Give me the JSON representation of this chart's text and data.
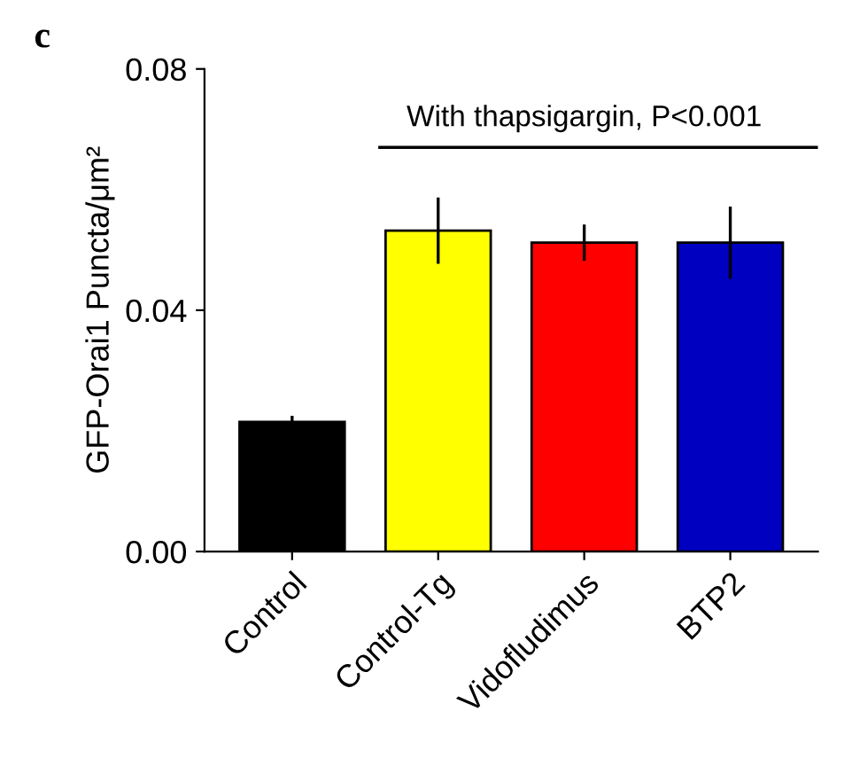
{
  "chart_data": {
    "type": "bar",
    "categories": [
      "Control",
      "Control-Tg",
      "Vidofludimus",
      "BTP2"
    ],
    "values": [
      0.0215,
      0.0532,
      0.0512,
      0.0512
    ],
    "errors": [
      0.001,
      0.0055,
      0.003,
      0.006
    ],
    "colors": [
      "#000000",
      "#ffff00",
      "#ff0000",
      "#0000c0"
    ],
    "ylabel": "GFP-Orai1 Puncta/μm²",
    "ylim": [
      0,
      0.08
    ],
    "yticks": [
      {
        "value": 0,
        "label": "0.00"
      },
      {
        "value": 0.04,
        "label": "0.04"
      },
      {
        "value": 0.08,
        "label": "0.08"
      }
    ],
    "annotations": [
      "c",
      "With thapsigargin, P<0.001"
    ],
    "grid": false,
    "legend": false
  }
}
